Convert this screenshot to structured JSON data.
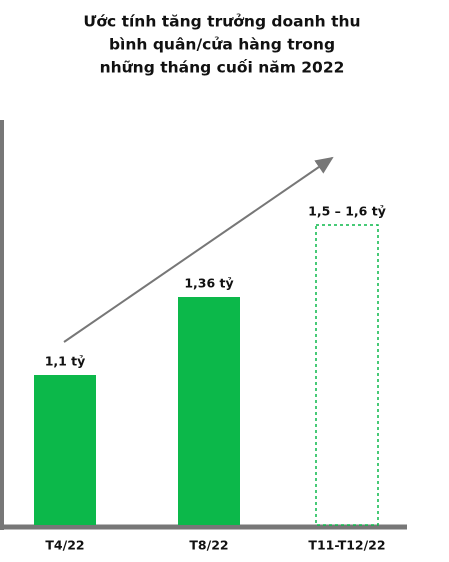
{
  "chart_data": {
    "type": "bar",
    "title": [
      "Ước tính tăng trưởng doanh thu",
      "bình quân/cửa hàng trong",
      "những tháng cuối năm 2022"
    ],
    "categories": [
      "T4/22",
      "T8/22",
      "T11-T12/22"
    ],
    "values": [
      1.1,
      1.36,
      1.6
    ],
    "value_labels": [
      "1,1 tỷ",
      "1,36 tỷ",
      "1,5 – 1,6 tỷ"
    ],
    "bar_styles": [
      "solid",
      "solid",
      "dashed"
    ],
    "color": "#0cb84a",
    "ylim": [
      0.6,
      1.9
    ]
  }
}
